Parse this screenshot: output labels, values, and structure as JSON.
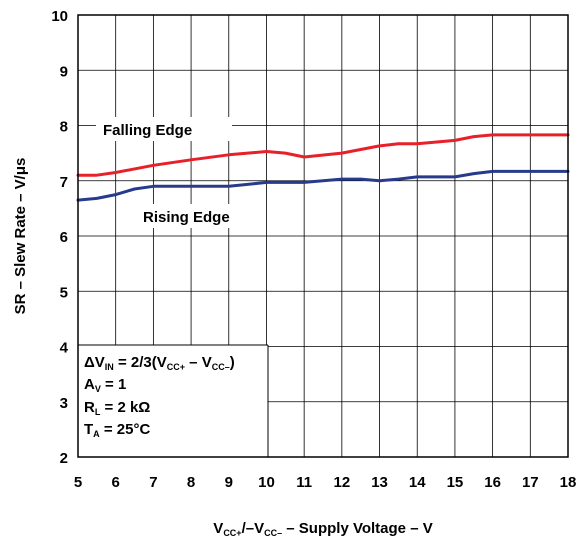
{
  "chart_data": {
    "type": "line",
    "title": "",
    "xlabel": {
      "a": "V",
      "a_sub": "CC+",
      "b": "/–V",
      "b_sub": "CC–",
      "c": " – Supply Voltage – V"
    },
    "ylabel": "SR – Slew Rate – V/μs",
    "xlim": [
      5,
      18
    ],
    "ylim": [
      2,
      10
    ],
    "x_ticks": [
      "5",
      "6",
      "7",
      "8",
      "9",
      "10",
      "11",
      "12",
      "13",
      "14",
      "15",
      "16",
      "17",
      "18"
    ],
    "y_ticks": [
      "2",
      "3",
      "4",
      "5",
      "6",
      "7",
      "8",
      "9",
      "10"
    ],
    "grid": true,
    "series": [
      {
        "name": "Falling Edge",
        "color": "#e8202a",
        "x": [
          5,
          5.5,
          6,
          7,
          8,
          9,
          10,
          10.5,
          11,
          12,
          13,
          13.5,
          14,
          15,
          15.5,
          16,
          17,
          18
        ],
        "y": [
          7.1,
          7.1,
          7.15,
          7.28,
          7.38,
          7.47,
          7.53,
          7.5,
          7.43,
          7.5,
          7.63,
          7.67,
          7.67,
          7.73,
          7.8,
          7.83,
          7.83,
          7.83
        ]
      },
      {
        "name": "Rising Edge",
        "color": "#283a8c",
        "x": [
          5,
          5.5,
          6,
          6.5,
          7,
          8,
          9,
          10,
          11,
          12,
          12.5,
          13,
          13.5,
          14,
          15,
          15.5,
          16,
          17,
          18
        ],
        "y": [
          6.65,
          6.68,
          6.75,
          6.85,
          6.9,
          6.9,
          6.9,
          6.97,
          6.97,
          7.03,
          7.03,
          7.0,
          7.03,
          7.07,
          7.07,
          7.13,
          7.17,
          7.17,
          7.17
        ]
      }
    ],
    "conditions": [
      {
        "a": "ΔV",
        "a_sub": "IN",
        "b": " = 2/3(V",
        "b_sub": "CC+",
        "c": " – V",
        "c_sub": "CC–",
        "d": ")"
      },
      {
        "a": "A",
        "a_sub": "V",
        "b": " = 1"
      },
      {
        "a": "R",
        "a_sub": "L",
        "b": " = 2 kΩ"
      },
      {
        "a": "T",
        "a_sub": "A",
        "b": " = 25°C"
      }
    ]
  }
}
